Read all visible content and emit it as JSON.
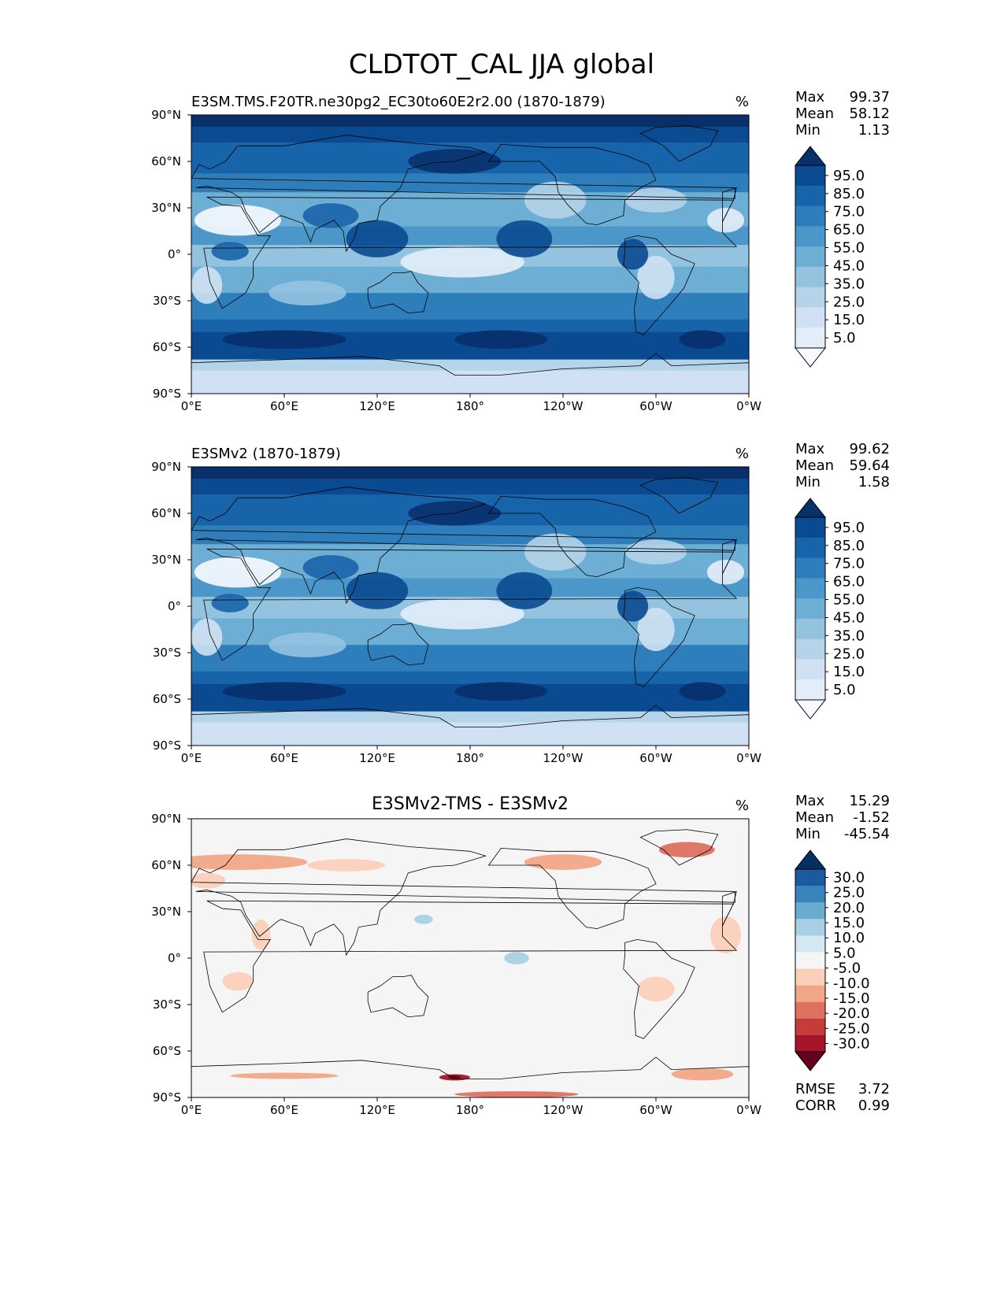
{
  "figure_title": "CLDTOT_CAL JJA global",
  "chart_data": [
    {
      "type": "heatmap",
      "title": "E3SM.TMS.F20TR.ne30pg2_EC30to60E2r2.00 (1870-1879)",
      "title_align": "left",
      "units": "%",
      "stats": [
        {
          "label": "Max",
          "value": "99.37"
        },
        {
          "label": "Mean",
          "value": "58.12"
        },
        {
          "label": "Min",
          "value": "1.13"
        }
      ],
      "colormap": "Blues",
      "colorbar_ticks": [
        "95.0",
        "85.0",
        "75.0",
        "65.0",
        "55.0",
        "45.0",
        "35.0",
        "25.0",
        "15.0",
        "5.0"
      ],
      "xticks": [
        "0°E",
        "60°E",
        "120°E",
        "180°",
        "120°W",
        "60°W",
        "0°W"
      ],
      "yticks": [
        "90°N",
        "60°N",
        "30°N",
        "0°",
        "30°S",
        "60°S",
        "90°S"
      ],
      "xlim": [
        0,
        360
      ],
      "ylim": [
        -90,
        90
      ]
    },
    {
      "type": "heatmap",
      "title": "E3SMv2 (1870-1879)",
      "title_align": "left",
      "units": "%",
      "stats": [
        {
          "label": "Max",
          "value": "99.62"
        },
        {
          "label": "Mean",
          "value": "59.64"
        },
        {
          "label": "Min",
          "value": "1.58"
        }
      ],
      "colormap": "Blues",
      "colorbar_ticks": [
        "95.0",
        "85.0",
        "75.0",
        "65.0",
        "55.0",
        "45.0",
        "35.0",
        "25.0",
        "15.0",
        "5.0"
      ],
      "xticks": [
        "0°E",
        "60°E",
        "120°E",
        "180°",
        "120°W",
        "60°W",
        "0°W"
      ],
      "yticks": [
        "90°N",
        "60°N",
        "30°N",
        "0°",
        "30°S",
        "60°S",
        "90°S"
      ],
      "xlim": [
        0,
        360
      ],
      "ylim": [
        -90,
        90
      ]
    },
    {
      "type": "heatmap",
      "title": "E3SMv2-TMS - E3SMv2",
      "title_align": "center",
      "units": "%",
      "stats": [
        {
          "label": "Max",
          "value": "15.29"
        },
        {
          "label": "Mean",
          "value": "-1.52"
        },
        {
          "label": "Min",
          "value": "-45.54"
        }
      ],
      "colormap": "RdBu",
      "colorbar_ticks": [
        "30.0",
        "25.0",
        "20.0",
        "15.0",
        "10.0",
        "5.0",
        "-5.0",
        "-10.0",
        "-15.0",
        "-20.0",
        "-25.0",
        "-30.0"
      ],
      "xticks": [
        "0°E",
        "60°E",
        "120°E",
        "180°",
        "120°W",
        "60°W",
        "0°W"
      ],
      "yticks": [
        "90°N",
        "60°N",
        "30°N",
        "0°",
        "30°S",
        "60°S",
        "90°S"
      ],
      "xlim": [
        0,
        360
      ],
      "ylim": [
        -90,
        90
      ],
      "metrics": [
        {
          "label": "RMSE",
          "value": "3.72"
        },
        {
          "label": "CORR",
          "value": "0.99"
        }
      ]
    }
  ],
  "colors": {
    "blues": [
      "#f7fbff",
      "#e3eef9",
      "#cfe1f2",
      "#b5d4e9",
      "#93c3df",
      "#6daed5",
      "#4b97c9",
      "#2f7ebc",
      "#1864aa",
      "#0a4a90",
      "#08306b"
    ],
    "rdbu": [
      "#67001f",
      "#a51429",
      "#c43c3c",
      "#de7161",
      "#f1a787",
      "#fbd0b9",
      "#f5f5f5",
      "#d5e7f0",
      "#a7d0e4",
      "#6aacd0",
      "#3885bc",
      "#1b5a9c",
      "#053061"
    ],
    "coast": "#000000"
  }
}
